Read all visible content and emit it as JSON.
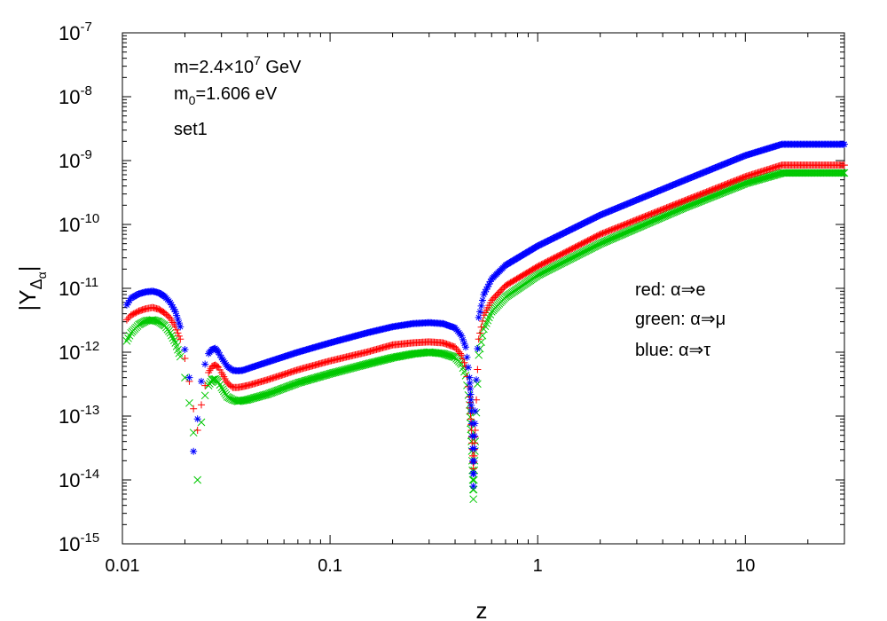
{
  "chart_data": {
    "type": "scatter",
    "title": "",
    "xlabel": "z",
    "ylabel": "|Y",
    "ylabel_sub": "Δ",
    "ylabel_subsub": "α",
    "xscale": "log",
    "yscale": "log",
    "xlim": [
      0.01,
      30
    ],
    "ylim": [
      1e-15,
      1e-07
    ],
    "x_ticks": [
      {
        "value": 0.01,
        "label": "0.01"
      },
      {
        "value": 0.1,
        "label": "0.1"
      },
      {
        "value": 1,
        "label": "1"
      },
      {
        "value": 10,
        "label": "10"
      }
    ],
    "y_ticks": [
      {
        "value": 1e-15,
        "base": "10",
        "exp": "-15"
      },
      {
        "value": 1e-14,
        "base": "10",
        "exp": "-14"
      },
      {
        "value": 1e-13,
        "base": "10",
        "exp": "-13"
      },
      {
        "value": 1e-12,
        "base": "10",
        "exp": "-12"
      },
      {
        "value": 1e-11,
        "base": "10",
        "exp": "-11"
      },
      {
        "value": 1e-10,
        "base": "10",
        "exp": "-10"
      },
      {
        "value": 1e-09,
        "base": "10",
        "exp": "-9"
      },
      {
        "value": 1e-08,
        "base": "10",
        "exp": "-8"
      },
      {
        "value": 1e-07,
        "base": "10",
        "exp": "-7"
      }
    ],
    "annotations_top": {
      "mass_prefix": "m=2.4×10",
      "mass_exp": "7",
      "mass_suffix": " GeV",
      "m0_prefix": "m",
      "m0_sub": "0",
      "m0_suffix": "=1.606 eV",
      "set_label": "set1"
    },
    "legend": {
      "placement": "right-middle",
      "entries": [
        {
          "color_word": "red:",
          "text": "α⇒e",
          "color": "#ff0000",
          "marker": "+"
        },
        {
          "color_word": "green:",
          "text": "α⇒μ",
          "color": "#00c800",
          "marker": "x"
        },
        {
          "color_word": "blue:",
          "text": "α⇒τ",
          "color": "#0000ff",
          "marker": "*"
        }
      ]
    },
    "series": [
      {
        "name": "α⇒e",
        "color": "#ff0000",
        "marker": "+",
        "x": [
          0.0105,
          0.011,
          0.012,
          0.013,
          0.014,
          0.015,
          0.016,
          0.017,
          0.018,
          0.019,
          0.02,
          0.021,
          0.022,
          0.023,
          0.024,
          0.025,
          0.026,
          0.027,
          0.028,
          0.029,
          0.03,
          0.032,
          0.034,
          0.036,
          0.038,
          0.04,
          0.05,
          0.07,
          0.1,
          0.15,
          0.2,
          0.25,
          0.3,
          0.35,
          0.4,
          0.43,
          0.45,
          0.47,
          0.48,
          0.49,
          0.5,
          0.52,
          0.55,
          0.6,
          0.7,
          1,
          2,
          5,
          10,
          15,
          20,
          30
        ],
        "y": [
          3.2e-12,
          3.8e-12,
          4.4e-12,
          4.8e-12,
          5e-12,
          4.7e-12,
          4.1e-12,
          3.4e-12,
          2.5e-12,
          1.6e-12,
          8e-13,
          3.5e-13,
          1.3e-13,
          6e-14,
          1.5e-13,
          3e-13,
          4.8e-13,
          6e-13,
          6.3e-13,
          5.8e-13,
          4.8e-13,
          3.3e-13,
          2.8e-13,
          2.8e-13,
          2.9e-13,
          3e-13,
          3.7e-13,
          5.3e-13,
          7.3e-13,
          1e-12,
          1.3e-12,
          1.4e-12,
          1.45e-12,
          1.4e-12,
          1.2e-12,
          9e-13,
          6e-13,
          2e-13,
          6e-14,
          1.5e-14,
          6e-14,
          1.6e-12,
          3.8e-12,
          6.5e-12,
          1.1e-11,
          2.2e-11,
          7e-11,
          2.3e-10,
          5.6e-10,
          8.5e-10,
          8.5e-10,
          8.5e-10
        ]
      },
      {
        "name": "α⇒μ",
        "color": "#00c800",
        "marker": "x",
        "x": [
          0.0105,
          0.011,
          0.012,
          0.013,
          0.014,
          0.015,
          0.016,
          0.017,
          0.018,
          0.019,
          0.02,
          0.021,
          0.022,
          0.023,
          0.024,
          0.025,
          0.026,
          0.027,
          0.028,
          0.029,
          0.03,
          0.032,
          0.034,
          0.036,
          0.038,
          0.04,
          0.05,
          0.07,
          0.1,
          0.15,
          0.2,
          0.25,
          0.3,
          0.35,
          0.4,
          0.43,
          0.45,
          0.47,
          0.48,
          0.49,
          0.5,
          0.52,
          0.55,
          0.6,
          0.7,
          1,
          2,
          5,
          10,
          15,
          20,
          30
        ],
        "y": [
          1.5e-12,
          2e-12,
          2.7e-12,
          3.1e-12,
          3.2e-12,
          3e-12,
          2.6e-12,
          2e-12,
          1.4e-12,
          8.5e-13,
          4e-13,
          1.6e-13,
          5.5e-14,
          1e-14,
          8e-14,
          2.1e-13,
          3e-13,
          3.7e-13,
          3.8e-13,
          3.4e-13,
          2.8e-13,
          2e-13,
          1.8e-13,
          1.7e-13,
          1.75e-13,
          1.8e-13,
          2.2e-13,
          3.3e-13,
          4.6e-13,
          6.5e-13,
          8.2e-13,
          9.4e-13,
          1e-12,
          9.5e-13,
          8.3e-13,
          6.5e-13,
          4.3e-13,
          1.5e-13,
          4e-14,
          5e-15,
          4e-14,
          9e-13,
          2.3e-12,
          4.3e-12,
          7.3e-12,
          1.6e-11,
          5e-11,
          1.8e-10,
          4.4e-10,
          6.4e-10,
          6.4e-10,
          6.4e-10
        ]
      },
      {
        "name": "α⇒τ",
        "color": "#0000ff",
        "marker": "*",
        "x": [
          0.0105,
          0.011,
          0.012,
          0.013,
          0.014,
          0.015,
          0.016,
          0.017,
          0.018,
          0.019,
          0.02,
          0.021,
          0.022,
          0.023,
          0.024,
          0.025,
          0.026,
          0.027,
          0.028,
          0.029,
          0.03,
          0.032,
          0.034,
          0.036,
          0.038,
          0.04,
          0.05,
          0.07,
          0.1,
          0.15,
          0.2,
          0.25,
          0.3,
          0.35,
          0.4,
          0.43,
          0.45,
          0.47,
          0.48,
          0.49,
          0.5,
          0.52,
          0.55,
          0.6,
          0.7,
          1,
          2,
          5,
          10,
          15,
          20,
          30
        ],
        "y": [
          5.5e-12,
          7e-12,
          8.2e-12,
          8.8e-12,
          9e-12,
          8.5e-12,
          7.4e-12,
          6e-12,
          4.3e-12,
          2.5e-12,
          1.1e-12,
          4e-13,
          2.8e-14,
          9e-14,
          3.5e-13,
          6.5e-13,
          9.5e-13,
          1.1e-12,
          1.15e-12,
          1e-12,
          8.2e-13,
          6e-13,
          5.2e-13,
          5.1e-13,
          5.2e-13,
          5.5e-13,
          7e-13,
          1e-12,
          1.4e-12,
          2e-12,
          2.5e-12,
          2.8e-12,
          2.9e-12,
          2.8e-12,
          2.4e-12,
          1.8e-12,
          1.2e-12,
          4e-13,
          1.2e-13,
          8e-15,
          1.2e-13,
          3.5e-12,
          8e-12,
          1.4e-11,
          2.3e-11,
          4.6e-11,
          1.4e-10,
          4.8e-10,
          1.2e-09,
          1.8e-09,
          1.8e-09,
          1.8e-09
        ]
      }
    ]
  }
}
